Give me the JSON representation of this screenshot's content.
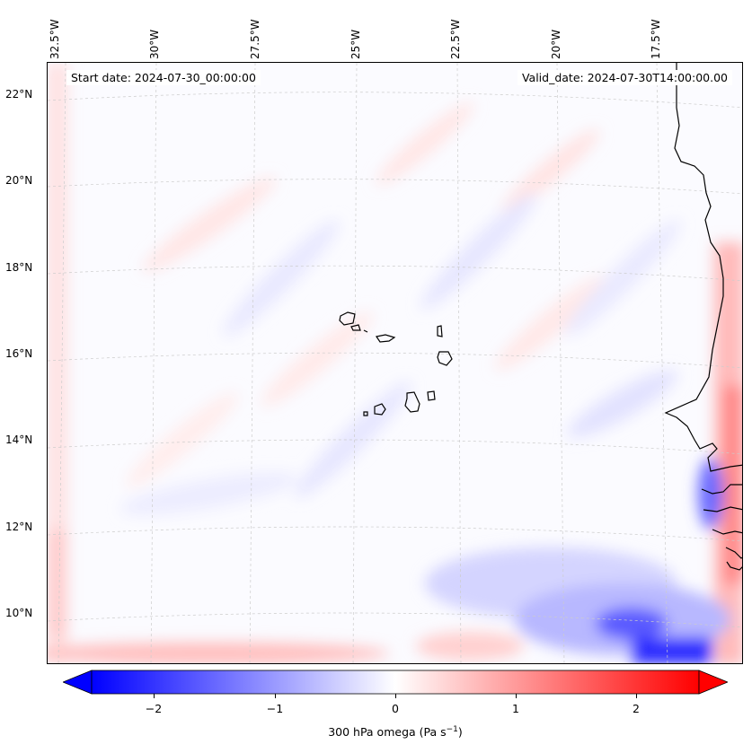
{
  "header": {
    "start_date": "Start date: 2024-07-30_00:00:00",
    "valid_date": "Valid_date: 2024-07-30T14:00:00.00"
  },
  "lon_labels": [
    "32.5°W",
    "30°W",
    "27.5°W",
    "25°W",
    "22.5°W",
    "20°W",
    "17.5°W"
  ],
  "lat_labels": [
    "22°N",
    "20°N",
    "18°N",
    "16°N",
    "14°N",
    "12°N",
    "10°N"
  ],
  "colorbar": {
    "label": "300 hPa omega (Pa s",
    "label_exponent": "−1",
    "label_close": ")",
    "ticks": [
      "−2",
      "−1",
      "0",
      "1",
      "2"
    ],
    "min": -2.6,
    "max": 2.6,
    "cmap": "bwr",
    "extend": "both"
  },
  "colors": {
    "negative": "#0000ff",
    "neutral": "#ffffff",
    "positive": "#ff0000",
    "coastline": "#000000"
  }
}
